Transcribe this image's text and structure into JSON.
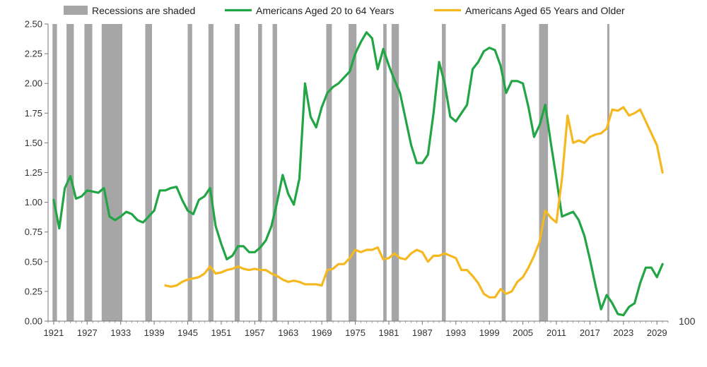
{
  "chart_data": {
    "type": "line",
    "title": "",
    "xlabel": "",
    "ylabel": "",
    "xlim": [
      1920,
      2031
    ],
    "ylim": [
      0,
      2.5
    ],
    "yticks": [
      "0.00",
      "0.25",
      "0.50",
      "0.75",
      "1.00",
      "1.25",
      "1.50",
      "1.75",
      "2.00",
      "2.25",
      "2.50"
    ],
    "xticks": [
      "1921",
      "1927",
      "1933",
      "1939",
      "1945",
      "1951",
      "1957",
      "1963",
      "1969",
      "1975",
      "1981",
      "1987",
      "1993",
      "1999",
      "2005",
      "2011",
      "2017",
      "2023",
      "2029"
    ],
    "extra_label": "100",
    "grid": false,
    "legend_position": "top",
    "legend": {
      "recession": "Recessions are shaded",
      "series": [
        "Americans Aged 20 to 64 Years",
        "Americans Aged 65 Years and Older"
      ]
    },
    "colors": {
      "recession": "#a6a6a6",
      "aged_20_64": "#22a544",
      "aged_65_plus": "#f5b820",
      "axis": "#777777"
    },
    "recessions": [
      [
        1920.8,
        1921.6
      ],
      [
        1923.3,
        1924.6
      ],
      [
        1926.5,
        1927.9
      ],
      [
        1929.6,
        1933.3
      ],
      [
        1937.4,
        1938.6
      ],
      [
        1945.0,
        1945.8
      ],
      [
        1948.7,
        1949.6
      ],
      [
        1953.4,
        1954.3
      ],
      [
        1957.6,
        1958.3
      ],
      [
        1960.2,
        1961.0
      ],
      [
        1969.8,
        1970.8
      ],
      [
        1973.8,
        1975.2
      ],
      [
        1980.0,
        1980.6
      ],
      [
        1981.5,
        1982.8
      ],
      [
        1990.5,
        1991.2
      ],
      [
        2001.2,
        2001.9
      ],
      [
        2007.9,
        2009.5
      ],
      [
        2020.1,
        2020.4
      ]
    ],
    "series": [
      {
        "name": "Americans Aged 20 to 64 Years",
        "x": [
          1921,
          1922,
          1923,
          1924,
          1925,
          1926,
          1927,
          1928,
          1929,
          1930,
          1931,
          1932,
          1933,
          1934,
          1935,
          1936,
          1937,
          1938,
          1939,
          1940,
          1941,
          1942,
          1943,
          1944,
          1945,
          1946,
          1947,
          1948,
          1949,
          1950,
          1951,
          1952,
          1953,
          1954,
          1955,
          1956,
          1957,
          1958,
          1959,
          1960,
          1961,
          1962,
          1963,
          1964,
          1965,
          1966,
          1967,
          1968,
          1969,
          1970,
          1971,
          1972,
          1973,
          1974,
          1975,
          1976,
          1977,
          1978,
          1979,
          1980,
          1981,
          1982,
          1983,
          1984,
          1985,
          1986,
          1987,
          1988,
          1989,
          1990,
          1991,
          1992,
          1993,
          1994,
          1995,
          1996,
          1997,
          1998,
          1999,
          2000,
          2001,
          2002,
          2003,
          2004,
          2005,
          2006,
          2007,
          2008,
          2009,
          2010,
          2011,
          2012,
          2013,
          2014,
          2015,
          2016,
          2017,
          2018,
          2019,
          2020,
          2021,
          2022,
          2023,
          2024,
          2025,
          2026,
          2027,
          2028,
          2029,
          2030
        ],
        "values": [
          1.02,
          0.78,
          1.12,
          1.22,
          1.03,
          1.05,
          1.1,
          1.09,
          1.08,
          1.12,
          0.88,
          0.85,
          0.88,
          0.92,
          0.9,
          0.85,
          0.83,
          0.88,
          0.93,
          1.1,
          1.1,
          1.12,
          1.13,
          1.02,
          0.93,
          0.9,
          1.02,
          1.05,
          1.12,
          0.8,
          0.65,
          0.52,
          0.55,
          0.63,
          0.63,
          0.58,
          0.58,
          0.62,
          0.68,
          0.8,
          1.0,
          1.23,
          1.07,
          0.98,
          1.2,
          2.0,
          1.72,
          1.63,
          1.8,
          1.92,
          1.97,
          2.0,
          2.05,
          2.1,
          2.25,
          2.35,
          2.43,
          2.38,
          2.12,
          2.29,
          2.15,
          2.03,
          1.92,
          1.7,
          1.48,
          1.33,
          1.33,
          1.4,
          1.75,
          2.18,
          2.0,
          1.72,
          1.68,
          1.75,
          1.82,
          2.12,
          2.18,
          2.27,
          2.3,
          2.28,
          2.15,
          1.92,
          2.02,
          2.02,
          2.0,
          1.8,
          1.55,
          1.65,
          1.82,
          1.5,
          1.2,
          0.88,
          0.9,
          0.92,
          0.85,
          0.72,
          0.52,
          0.3,
          0.1,
          0.22,
          0.15,
          0.06,
          0.05,
          0.12,
          0.15,
          0.32,
          0.45,
          0.45,
          0.37,
          0.48
        ]
      },
      {
        "name": "Americans Aged 65 Years and Older",
        "x": [
          1941,
          1942,
          1943,
          1944,
          1945,
          1946,
          1947,
          1948,
          1949,
          1950,
          1951,
          1952,
          1953,
          1954,
          1955,
          1956,
          1957,
          1958,
          1959,
          1960,
          1961,
          1962,
          1963,
          1964,
          1965,
          1966,
          1967,
          1968,
          1969,
          1970,
          1971,
          1972,
          1973,
          1974,
          1975,
          1976,
          1977,
          1978,
          1979,
          1980,
          1981,
          1982,
          1983,
          1984,
          1985,
          1986,
          1987,
          1988,
          1989,
          1990,
          1991,
          1992,
          1993,
          1994,
          1995,
          1996,
          1997,
          1998,
          1999,
          2000,
          2001,
          2002,
          2003,
          2004,
          2005,
          2006,
          2007,
          2008,
          2009,
          2010,
          2011,
          2012,
          2013,
          2014,
          2015,
          2016,
          2017,
          2018,
          2019,
          2020,
          2021,
          2022,
          2023,
          2024,
          2025,
          2026,
          2027,
          2028,
          2029,
          2030
        ],
        "values": [
          0.3,
          0.29,
          0.3,
          0.33,
          0.35,
          0.36,
          0.37,
          0.4,
          0.46,
          0.4,
          0.41,
          0.43,
          0.44,
          0.46,
          0.44,
          0.43,
          0.44,
          0.43,
          0.43,
          0.4,
          0.38,
          0.35,
          0.33,
          0.34,
          0.33,
          0.31,
          0.31,
          0.31,
          0.3,
          0.43,
          0.44,
          0.48,
          0.48,
          0.53,
          0.6,
          0.58,
          0.6,
          0.6,
          0.62,
          0.52,
          0.53,
          0.57,
          0.53,
          0.52,
          0.57,
          0.6,
          0.58,
          0.5,
          0.55,
          0.55,
          0.57,
          0.55,
          0.53,
          0.43,
          0.43,
          0.38,
          0.32,
          0.23,
          0.2,
          0.2,
          0.27,
          0.23,
          0.25,
          0.33,
          0.37,
          0.45,
          0.55,
          0.67,
          0.93,
          0.87,
          0.83,
          1.2,
          1.73,
          1.5,
          1.52,
          1.5,
          1.55,
          1.57,
          1.58,
          1.62,
          1.78,
          1.77,
          1.8,
          1.73,
          1.75,
          1.78,
          1.68,
          1.58,
          1.48,
          1.25
        ]
      }
    ]
  }
}
